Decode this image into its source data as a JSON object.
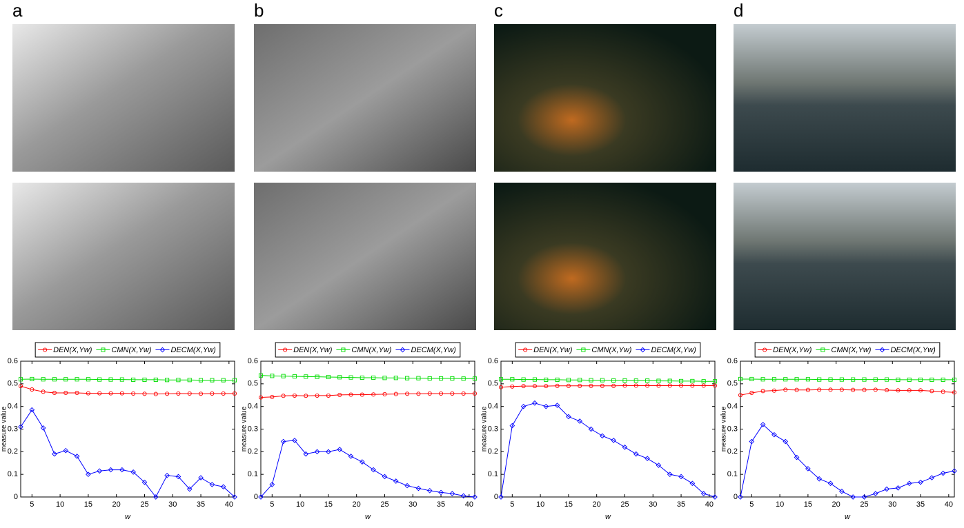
{
  "chart_data": [
    {
      "type": "line",
      "panel_label": "a",
      "xlabel": "w",
      "ylabel": "measure value",
      "x": [
        3,
        5,
        7,
        9,
        11,
        13,
        15,
        17,
        19,
        21,
        23,
        25,
        27,
        29,
        31,
        33,
        35,
        37,
        39,
        41
      ],
      "xlim": [
        3,
        41
      ],
      "xticks": [
        5,
        10,
        15,
        20,
        25,
        30,
        35,
        40
      ],
      "ylim": [
        0,
        0.6
      ],
      "yticks": [
        0,
        0.1,
        0.2,
        0.3,
        0.4,
        0.5,
        0.6
      ],
      "series": [
        {
          "name": "DEN(X,Yw)",
          "color": "#ff0000",
          "marker": "circle",
          "values": [
            0.49,
            0.475,
            0.465,
            0.46,
            0.46,
            0.46,
            0.458,
            0.458,
            0.458,
            0.458,
            0.457,
            0.456,
            0.455,
            0.456,
            0.457,
            0.457,
            0.456,
            0.457,
            0.457,
            0.457
          ]
        },
        {
          "name": "CMN(X,Yw)",
          "color": "#00dd00",
          "marker": "square",
          "values": [
            0.52,
            0.521,
            0.52,
            0.52,
            0.52,
            0.52,
            0.52,
            0.519,
            0.519,
            0.519,
            0.518,
            0.518,
            0.518,
            0.517,
            0.517,
            0.517,
            0.516,
            0.516,
            0.516,
            0.516
          ]
        },
        {
          "name": "DECM(X,Yw)",
          "color": "#0000ff",
          "marker": "diamond",
          "values": [
            0.31,
            0.385,
            0.305,
            0.19,
            0.205,
            0.18,
            0.1,
            0.115,
            0.12,
            0.12,
            0.11,
            0.065,
            0,
            0.095,
            0.09,
            0.035,
            0.085,
            0.055,
            0.045,
            0
          ]
        }
      ]
    },
    {
      "type": "line",
      "panel_label": "b",
      "xlabel": "w",
      "ylabel": "measure value",
      "x": [
        3,
        5,
        7,
        9,
        11,
        13,
        15,
        17,
        19,
        21,
        23,
        25,
        27,
        29,
        31,
        33,
        35,
        37,
        39,
        41
      ],
      "xlim": [
        3,
        41
      ],
      "xticks": [
        5,
        10,
        15,
        20,
        25,
        30,
        35,
        40
      ],
      "ylim": [
        0,
        0.6
      ],
      "yticks": [
        0,
        0.1,
        0.2,
        0.3,
        0.4,
        0.5,
        0.6
      ],
      "series": [
        {
          "name": "DEN(X,Yw)",
          "color": "#ff0000",
          "marker": "circle",
          "values": [
            0.44,
            0.442,
            0.447,
            0.448,
            0.447,
            0.448,
            0.448,
            0.451,
            0.452,
            0.452,
            0.453,
            0.454,
            0.455,
            0.456,
            0.456,
            0.457,
            0.457,
            0.457,
            0.457,
            0.457
          ]
        },
        {
          "name": "CMN(X,Yw)",
          "color": "#00dd00",
          "marker": "square",
          "values": [
            0.537,
            0.535,
            0.534,
            0.533,
            0.532,
            0.531,
            0.53,
            0.529,
            0.528,
            0.527,
            0.527,
            0.526,
            0.526,
            0.525,
            0.525,
            0.524,
            0.524,
            0.524,
            0.523,
            0.523
          ]
        },
        {
          "name": "DECM(X,Yw)",
          "color": "#0000ff",
          "marker": "diamond",
          "values": [
            0,
            0.055,
            0.245,
            0.25,
            0.19,
            0.2,
            0.2,
            0.21,
            0.18,
            0.155,
            0.12,
            0.09,
            0.07,
            0.05,
            0.038,
            0.028,
            0.02,
            0.015,
            0.005,
            0
          ]
        }
      ]
    },
    {
      "type": "line",
      "panel_label": "c",
      "xlabel": "w",
      "ylabel": "measure value",
      "x": [
        3,
        5,
        7,
        9,
        11,
        13,
        15,
        17,
        19,
        21,
        23,
        25,
        27,
        29,
        31,
        33,
        35,
        37,
        39,
        41
      ],
      "xlim": [
        3,
        41
      ],
      "xticks": [
        5,
        10,
        15,
        20,
        25,
        30,
        35,
        40
      ],
      "ylim": [
        0,
        0.6
      ],
      "yticks": [
        0,
        0.1,
        0.2,
        0.3,
        0.4,
        0.5,
        0.6
      ],
      "series": [
        {
          "name": "DEN(X,Yw)",
          "color": "#ff0000",
          "marker": "circle",
          "values": [
            0.485,
            0.488,
            0.49,
            0.49,
            0.49,
            0.491,
            0.491,
            0.491,
            0.491,
            0.491,
            0.491,
            0.492,
            0.492,
            0.492,
            0.492,
            0.492,
            0.492,
            0.492,
            0.492,
            0.492
          ]
        },
        {
          "name": "CMN(X,Yw)",
          "color": "#00dd00",
          "marker": "square",
          "values": [
            0.52,
            0.52,
            0.519,
            0.519,
            0.518,
            0.518,
            0.517,
            0.517,
            0.516,
            0.516,
            0.515,
            0.515,
            0.514,
            0.514,
            0.513,
            0.513,
            0.512,
            0.512,
            0.511,
            0.511
          ]
        },
        {
          "name": "DECM(X,Yw)",
          "color": "#0000ff",
          "marker": "diamond",
          "values": [
            0,
            0.315,
            0.4,
            0.415,
            0.4,
            0.405,
            0.355,
            0.335,
            0.3,
            0.27,
            0.25,
            0.22,
            0.19,
            0.17,
            0.14,
            0.1,
            0.09,
            0.06,
            0.015,
            0
          ]
        }
      ]
    },
    {
      "type": "line",
      "panel_label": "d",
      "xlabel": "w",
      "ylabel": "measure value",
      "x": [
        3,
        5,
        7,
        9,
        11,
        13,
        15,
        17,
        19,
        21,
        23,
        25,
        27,
        29,
        31,
        33,
        35,
        37,
        39,
        41
      ],
      "xlim": [
        3,
        41
      ],
      "xticks": [
        5,
        10,
        15,
        20,
        25,
        30,
        35,
        40
      ],
      "ylim": [
        0,
        0.6
      ],
      "yticks": [
        0,
        0.1,
        0.2,
        0.3,
        0.4,
        0.5,
        0.6
      ],
      "series": [
        {
          "name": "DEN(X,Yw)",
          "color": "#ff0000",
          "marker": "circle",
          "values": [
            0.45,
            0.46,
            0.468,
            0.47,
            0.474,
            0.473,
            0.473,
            0.474,
            0.474,
            0.474,
            0.473,
            0.473,
            0.474,
            0.472,
            0.471,
            0.471,
            0.471,
            0.468,
            0.465,
            0.462
          ]
        },
        {
          "name": "CMN(X,Yw)",
          "color": "#00dd00",
          "marker": "square",
          "values": [
            0.521,
            0.521,
            0.52,
            0.52,
            0.52,
            0.52,
            0.52,
            0.519,
            0.519,
            0.519,
            0.519,
            0.519,
            0.519,
            0.519,
            0.518,
            0.518,
            0.518,
            0.518,
            0.518,
            0.518
          ]
        },
        {
          "name": "DECM(X,Yw)",
          "color": "#0000ff",
          "marker": "diamond",
          "values": [
            0,
            0.245,
            0.32,
            0.275,
            0.245,
            0.175,
            0.125,
            0.08,
            0.06,
            0.025,
            0,
            0,
            0.015,
            0.035,
            0.04,
            0.06,
            0.065,
            0.085,
            0.105,
            0.115
          ]
        }
      ]
    }
  ]
}
